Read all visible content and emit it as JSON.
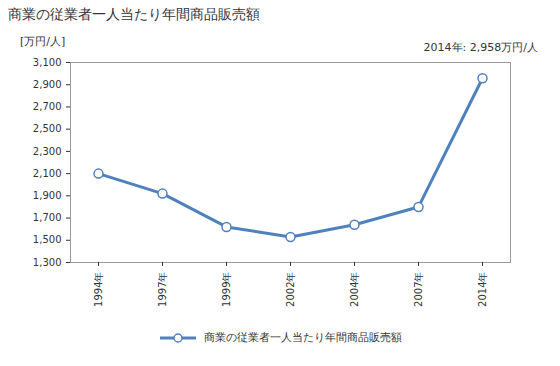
{
  "chart_data": {
    "type": "line",
    "title": "商業の従業者一人当たり年間商品販売額",
    "y_label": "[万円/人]",
    "annotations": [
      "2014年: 2,958万円/人"
    ],
    "categories": [
      "1994年",
      "1997年",
      "1999年",
      "2002年",
      "2004年",
      "2007年",
      "2014年"
    ],
    "series": [
      {
        "name": "商業の従業者一人当たり年間商品販売額",
        "color": "#4f81bd",
        "marker": "circle",
        "values": [
          2100,
          1920,
          1620,
          1530,
          1640,
          1800,
          2958
        ]
      }
    ],
    "ylim": [
      1300,
      3100
    ],
    "yticks": [
      {
        "value": 1300,
        "label": "1,300"
      },
      {
        "value": 1500,
        "label": "1,500"
      },
      {
        "value": 1700,
        "label": "1,700"
      },
      {
        "value": 1900,
        "label": "1,900"
      },
      {
        "value": 2100,
        "label": "2,100"
      },
      {
        "value": 2300,
        "label": "2,300"
      },
      {
        "value": 2500,
        "label": "2,500"
      },
      {
        "value": 2700,
        "label": "2,700"
      },
      {
        "value": 2900,
        "label": "2,900"
      },
      {
        "value": 3100,
        "label": "3,100"
      }
    ],
    "grid": false,
    "legend": "bottom"
  }
}
